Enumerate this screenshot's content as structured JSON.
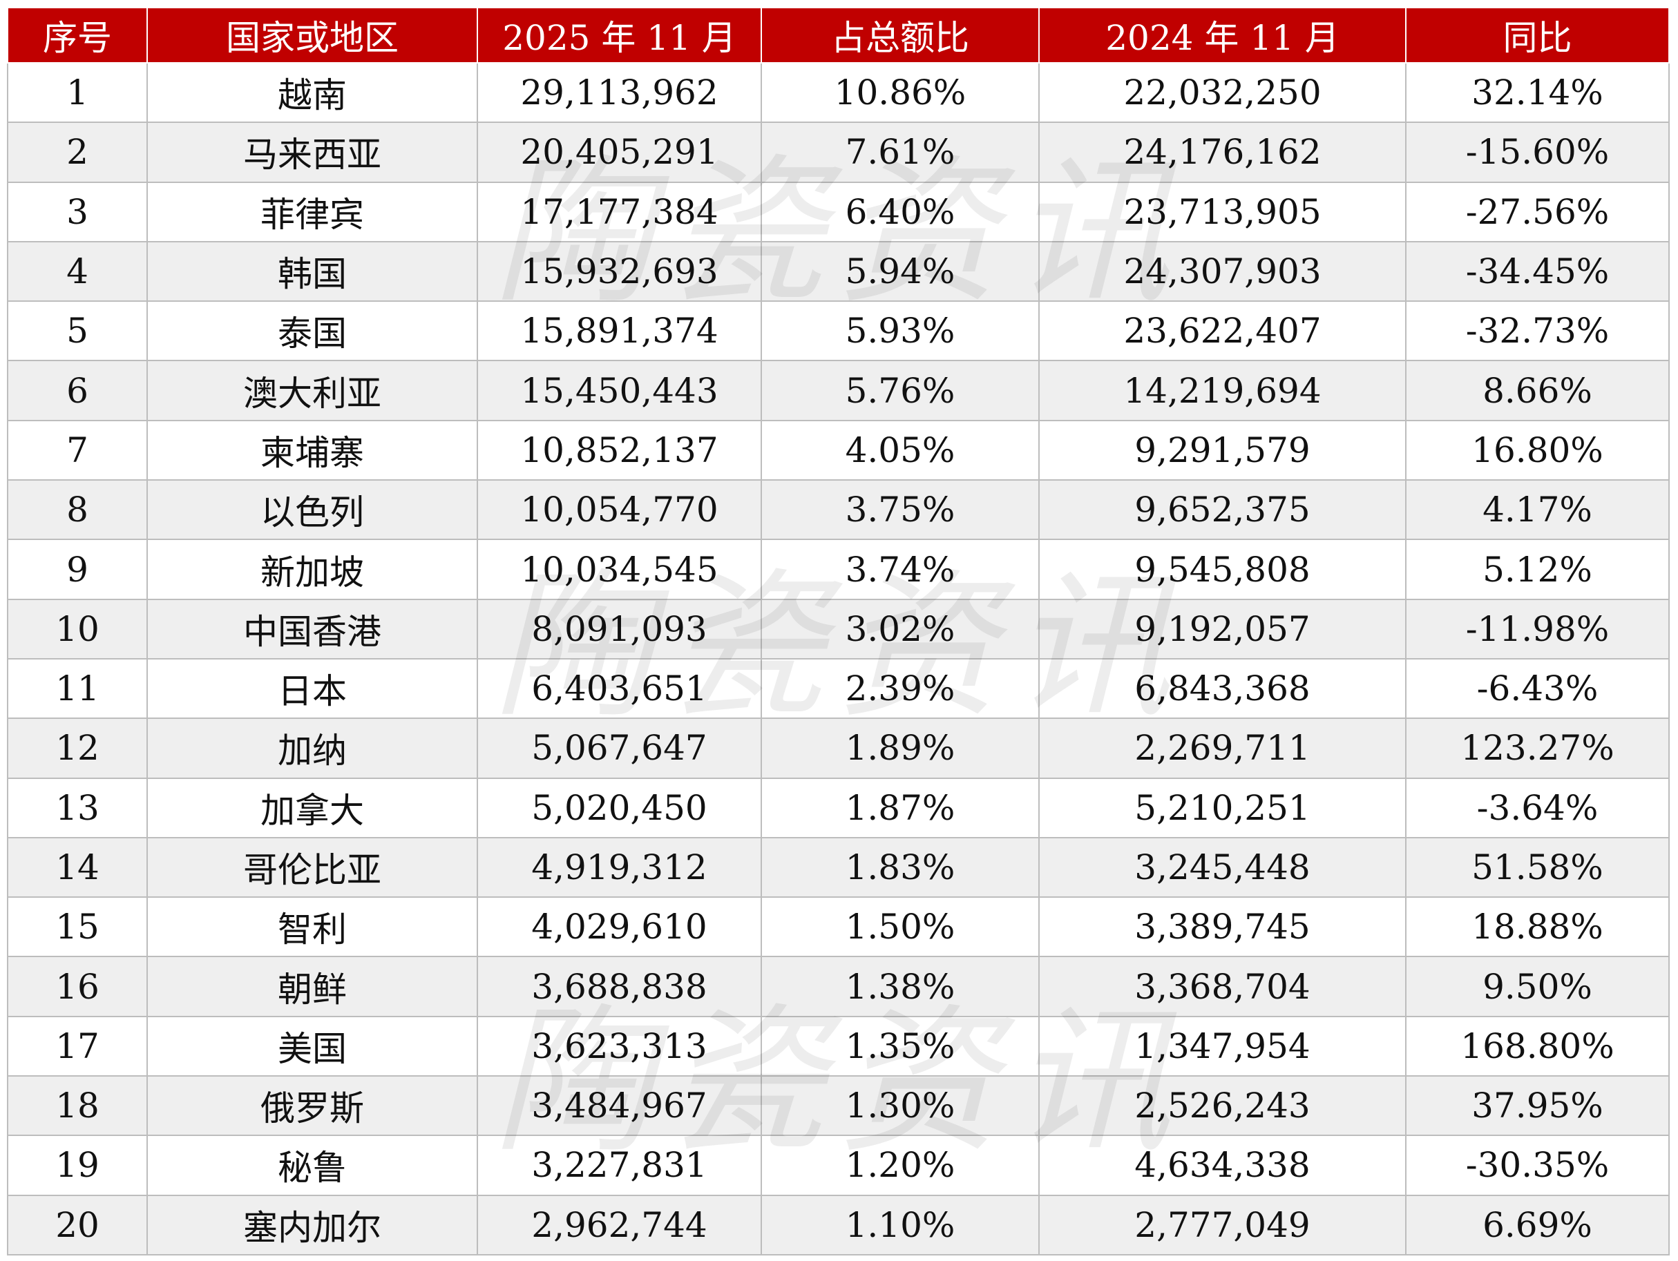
{
  "table": {
    "headers": [
      "序号",
      "国家或地区",
      "2025 年 11 月",
      "占总额比",
      "2024 年 11 月",
      "同比"
    ],
    "rows": [
      [
        "1",
        "越南",
        "29,113,962",
        "10.86%",
        "22,032,250",
        "32.14%"
      ],
      [
        "2",
        "马来西亚",
        "20,405,291",
        "7.61%",
        "24,176,162",
        "-15.60%"
      ],
      [
        "3",
        "菲律宾",
        "17,177,384",
        "6.40%",
        "23,713,905",
        "-27.56%"
      ],
      [
        "4",
        "韩国",
        "15,932,693",
        "5.94%",
        "24,307,903",
        "-34.45%"
      ],
      [
        "5",
        "泰国",
        "15,891,374",
        "5.93%",
        "23,622,407",
        "-32.73%"
      ],
      [
        "6",
        "澳大利亚",
        "15,450,443",
        "5.76%",
        "14,219,694",
        "8.66%"
      ],
      [
        "7",
        "柬埔寨",
        "10,852,137",
        "4.05%",
        "9,291,579",
        "16.80%"
      ],
      [
        "8",
        "以色列",
        "10,054,770",
        "3.75%",
        "9,652,375",
        "4.17%"
      ],
      [
        "9",
        "新加坡",
        "10,034,545",
        "3.74%",
        "9,545,808",
        "5.12%"
      ],
      [
        "10",
        "中国香港",
        "8,091,093",
        "3.02%",
        "9,192,057",
        "-11.98%"
      ],
      [
        "11",
        "日本",
        "6,403,651",
        "2.39%",
        "6,843,368",
        "-6.43%"
      ],
      [
        "12",
        "加纳",
        "5,067,647",
        "1.89%",
        "2,269,711",
        "123.27%"
      ],
      [
        "13",
        "加拿大",
        "5,020,450",
        "1.87%",
        "5,210,251",
        "-3.64%"
      ],
      [
        "14",
        "哥伦比亚",
        "4,919,312",
        "1.83%",
        "3,245,448",
        "51.58%"
      ],
      [
        "15",
        "智利",
        "4,029,610",
        "1.50%",
        "3,389,745",
        "18.88%"
      ],
      [
        "16",
        "朝鲜",
        "3,688,838",
        "1.38%",
        "3,368,704",
        "9.50%"
      ],
      [
        "17",
        "美国",
        "3,623,313",
        "1.35%",
        "1,347,954",
        "168.80%"
      ],
      [
        "18",
        "俄罗斯",
        "3,484,967",
        "1.30%",
        "2,526,243",
        "37.95%"
      ],
      [
        "19",
        "秘鲁",
        "3,227,831",
        "1.20%",
        "4,634,338",
        "-30.35%"
      ],
      [
        "20",
        "塞内加尔",
        "2,962,744",
        "1.10%",
        "2,777,049",
        "6.69%"
      ]
    ]
  },
  "watermark": {
    "text": "陶瓷资讯"
  },
  "colors": {
    "header_bg": "#c00000",
    "header_text": "#ffffff",
    "stripe": "#efefef",
    "border": "#bdbdbd"
  }
}
